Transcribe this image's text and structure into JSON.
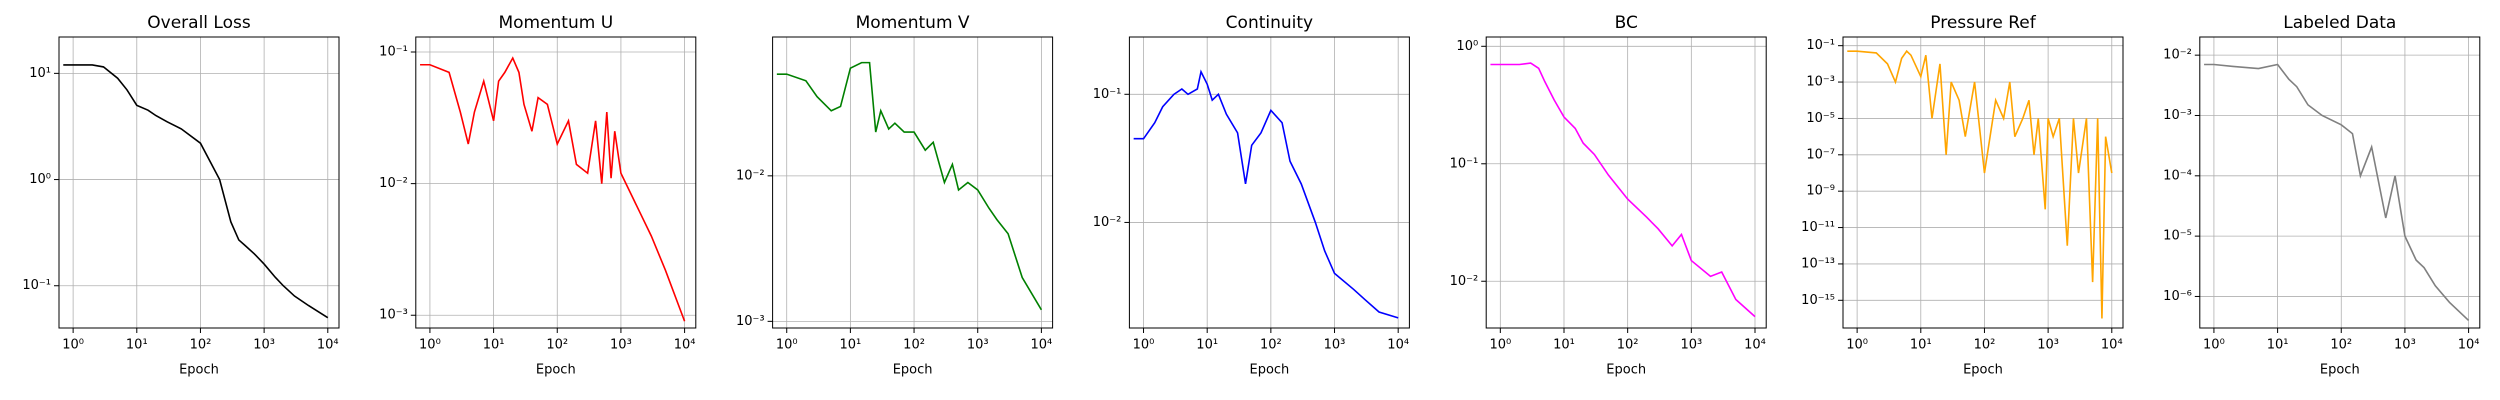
{
  "chart_data": [
    {
      "type": "line",
      "title": "Overall Loss",
      "xlabel": "Epoch",
      "color": "#000000",
      "xlog": true,
      "ylog": true,
      "grid": true,
      "x": [
        0.7,
        1,
        2,
        3,
        5,
        7,
        10,
        15,
        20,
        30,
        50,
        100,
        200,
        300,
        400,
        500,
        700,
        1000,
        1500,
        2000,
        3000,
        5000,
        10000
      ],
      "values": [
        12,
        12,
        12,
        11.5,
        9,
        7,
        5,
        4.5,
        4,
        3.5,
        3,
        2.2,
        1,
        0.4,
        0.27,
        0.24,
        0.2,
        0.16,
        0.12,
        0.1,
        0.08,
        0.065,
        0.05
      ],
      "xlim": [
        0.6,
        15000
      ],
      "ylim": [
        0.04,
        22
      ],
      "xticks": [
        {
          "value": 1,
          "label": "10⁰"
        },
        {
          "value": 10,
          "label": "10¹"
        },
        {
          "value": 100,
          "label": "10²"
        },
        {
          "value": 1000,
          "label": "10³"
        },
        {
          "value": 10000,
          "label": "10⁴"
        }
      ],
      "yticks": [
        {
          "value": 0.1,
          "label": "10⁻¹"
        },
        {
          "value": 1,
          "label": "10⁰"
        },
        {
          "value": 10,
          "label": "10¹"
        }
      ]
    },
    {
      "type": "line",
      "title": "Momentum U",
      "xlabel": "Epoch",
      "color": "#ff0000",
      "xlog": true,
      "ylog": true,
      "grid": true,
      "x": [
        0.7,
        1,
        2,
        3,
        4,
        5,
        7,
        10,
        12,
        15,
        20,
        25,
        30,
        40,
        50,
        70,
        100,
        150,
        200,
        300,
        400,
        500,
        600,
        700,
        800,
        1000,
        1500,
        2000,
        3000,
        5000,
        10000
      ],
      "values": [
        0.08,
        0.08,
        0.07,
        0.035,
        0.02,
        0.035,
        0.06,
        0.03,
        0.06,
        0.07,
        0.09,
        0.07,
        0.04,
        0.025,
        0.045,
        0.04,
        0.02,
        0.03,
        0.014,
        0.012,
        0.03,
        0.01,
        0.035,
        0.011,
        0.025,
        0.012,
        0.008,
        0.006,
        0.004,
        0.0022,
        0.0009
      ],
      "xlim": [
        0.6,
        15000
      ],
      "ylim": [
        0.0008,
        0.13
      ],
      "xticks": [
        {
          "value": 1,
          "label": "10⁰"
        },
        {
          "value": 10,
          "label": "10¹"
        },
        {
          "value": 100,
          "label": "10²"
        },
        {
          "value": 1000,
          "label": "10³"
        },
        {
          "value": 10000,
          "label": "10⁴"
        }
      ],
      "yticks": [
        {
          "value": 0.001,
          "label": "10⁻³"
        },
        {
          "value": 0.01,
          "label": "10⁻²"
        },
        {
          "value": 0.1,
          "label": "10⁻¹"
        }
      ]
    },
    {
      "type": "line",
      "title": "Momentum V",
      "xlabel": "Epoch",
      "color": "#008000",
      "xlog": true,
      "ylog": true,
      "grid": true,
      "x": [
        0.7,
        1,
        2,
        3,
        5,
        7,
        10,
        15,
        20,
        25,
        30,
        40,
        50,
        70,
        100,
        150,
        200,
        300,
        400,
        500,
        700,
        1000,
        1500,
        2000,
        3000,
        5000,
        10000
      ],
      "values": [
        0.05,
        0.05,
        0.045,
        0.035,
        0.028,
        0.03,
        0.055,
        0.06,
        0.06,
        0.02,
        0.028,
        0.021,
        0.023,
        0.02,
        0.02,
        0.015,
        0.017,
        0.009,
        0.012,
        0.008,
        0.009,
        0.008,
        0.006,
        0.005,
        0.004,
        0.002,
        0.0012
      ],
      "xlim": [
        0.6,
        15000
      ],
      "ylim": [
        0.0009,
        0.09
      ],
      "xticks": [
        {
          "value": 1,
          "label": "10⁰"
        },
        {
          "value": 10,
          "label": "10¹"
        },
        {
          "value": 100,
          "label": "10²"
        },
        {
          "value": 1000,
          "label": "10³"
        },
        {
          "value": 10000,
          "label": "10⁴"
        }
      ],
      "yticks": [
        {
          "value": 0.001,
          "label": "10⁻³"
        },
        {
          "value": 0.01,
          "label": "10⁻²"
        }
      ]
    },
    {
      "type": "line",
      "title": "Continuity",
      "xlabel": "Epoch",
      "color": "#0000ff",
      "xlog": true,
      "ylog": true,
      "grid": true,
      "x": [
        0.7,
        1,
        1.5,
        2,
        3,
        4,
        5,
        7,
        8,
        10,
        12,
        15,
        20,
        30,
        40,
        50,
        70,
        100,
        150,
        200,
        300,
        500,
        700,
        1000,
        2000,
        3000,
        5000,
        10000
      ],
      "values": [
        0.045,
        0.045,
        0.06,
        0.08,
        0.1,
        0.11,
        0.1,
        0.11,
        0.15,
        0.12,
        0.09,
        0.1,
        0.07,
        0.05,
        0.02,
        0.04,
        0.05,
        0.075,
        0.06,
        0.03,
        0.02,
        0.01,
        0.006,
        0.004,
        0.003,
        0.0025,
        0.002,
        0.0018
      ],
      "xlim": [
        0.6,
        15000
      ],
      "ylim": [
        0.0015,
        0.28
      ],
      "xticks": [
        {
          "value": 1,
          "label": "10⁰"
        },
        {
          "value": 10,
          "label": "10¹"
        },
        {
          "value": 100,
          "label": "10²"
        },
        {
          "value": 1000,
          "label": "10³"
        },
        {
          "value": 10000,
          "label": "10⁴"
        }
      ],
      "yticks": [
        {
          "value": 0.01,
          "label": "10⁻²"
        },
        {
          "value": 0.1,
          "label": "10⁻¹"
        }
      ]
    },
    {
      "type": "line",
      "title": "BC",
      "xlabel": "Epoch",
      "color": "#ff00ff",
      "xlog": true,
      "ylog": true,
      "grid": true,
      "x": [
        0.7,
        1,
        2,
        3,
        4,
        5,
        7,
        10,
        15,
        20,
        30,
        50,
        100,
        200,
        300,
        500,
        700,
        1000,
        2000,
        3000,
        5000,
        10000
      ],
      "values": [
        0.7,
        0.7,
        0.7,
        0.72,
        0.65,
        0.5,
        0.35,
        0.25,
        0.2,
        0.15,
        0.12,
        0.08,
        0.05,
        0.035,
        0.028,
        0.02,
        0.025,
        0.015,
        0.011,
        0.012,
        0.007,
        0.005
      ],
      "xlim": [
        0.6,
        15000
      ],
      "ylim": [
        0.004,
        1.2
      ],
      "xticks": [
        {
          "value": 1,
          "label": "10⁰"
        },
        {
          "value": 10,
          "label": "10¹"
        },
        {
          "value": 100,
          "label": "10²"
        },
        {
          "value": 1000,
          "label": "10³"
        },
        {
          "value": 10000,
          "label": "10⁴"
        }
      ],
      "yticks": [
        {
          "value": 0.01,
          "label": "10⁻²"
        },
        {
          "value": 0.1,
          "label": "10⁻¹"
        },
        {
          "value": 1,
          "label": "10⁰"
        }
      ]
    },
    {
      "type": "line",
      "title": "Pressure Ref",
      "xlabel": "Epoch",
      "color": "#ffa500",
      "xlog": true,
      "ylog": true,
      "grid": true,
      "x": [
        0.7,
        1,
        2,
        3,
        4,
        5,
        6,
        7,
        10,
        12,
        15,
        20,
        25,
        30,
        40,
        50,
        70,
        100,
        150,
        200,
        250,
        300,
        400,
        500,
        600,
        700,
        900,
        1000,
        1200,
        1500,
        2000,
        2500,
        3000,
        4000,
        5000,
        6000,
        7000,
        8000,
        10000
      ],
      "values": [
        0.05,
        0.05,
        0.04,
        0.01,
        0.001,
        0.02,
        0.05,
        0.03,
        0.002,
        0.03,
        1e-05,
        0.01,
        1e-07,
        0.001,
        0.0001,
        1e-06,
        0.001,
        1e-08,
        0.0001,
        1e-05,
        0.001,
        1e-06,
        1e-05,
        0.0001,
        1e-07,
        1e-05,
        1e-10,
        1e-05,
        1e-06,
        1e-05,
        1e-12,
        1e-05,
        1e-08,
        1e-05,
        1e-14,
        1e-05,
        1e-16,
        1e-06,
        1e-08
      ],
      "xlim": [
        0.6,
        15000
      ],
      "ylim": [
        3e-17,
        0.3
      ],
      "xticks": [
        {
          "value": 1,
          "label": "10⁰"
        },
        {
          "value": 10,
          "label": "10¹"
        },
        {
          "value": 100,
          "label": "10²"
        },
        {
          "value": 1000,
          "label": "10³"
        },
        {
          "value": 10000,
          "label": "10⁴"
        }
      ],
      "yticks": [
        {
          "value": 1e-15,
          "label": "10⁻¹⁵"
        },
        {
          "value": 1e-13,
          "label": "10⁻¹³"
        },
        {
          "value": 1e-11,
          "label": "10⁻¹¹"
        },
        {
          "value": 1e-09,
          "label": "10⁻⁹"
        },
        {
          "value": 1e-07,
          "label": "10⁻⁷"
        },
        {
          "value": 1e-05,
          "label": "10⁻⁵"
        },
        {
          "value": 0.001,
          "label": "10⁻³"
        },
        {
          "value": 0.1,
          "label": "10⁻¹"
        }
      ]
    },
    {
      "type": "line",
      "title": "Labeled Data",
      "xlabel": "Epoch",
      "color": "#808080",
      "xlog": true,
      "ylog": true,
      "grid": true,
      "x": [
        0.7,
        1,
        2,
        5,
        10,
        15,
        20,
        30,
        50,
        100,
        150,
        200,
        300,
        500,
        700,
        1000,
        1500,
        2000,
        3000,
        5000,
        10000
      ],
      "values": [
        0.007,
        0.007,
        0.0065,
        0.006,
        0.007,
        0.004,
        0.003,
        0.0015,
        0.001,
        0.0007,
        0.0005,
        0.0001,
        0.0003,
        2e-05,
        0.0001,
        1e-05,
        4e-06,
        3e-06,
        1.5e-06,
        8e-07,
        4e-07
      ],
      "xlim": [
        0.6,
        15000
      ],
      "ylim": [
        3e-07,
        0.02
      ],
      "xticks": [
        {
          "value": 1,
          "label": "10⁰"
        },
        {
          "value": 10,
          "label": "10¹"
        },
        {
          "value": 100,
          "label": "10²"
        },
        {
          "value": 1000,
          "label": "10³"
        },
        {
          "value": 10000,
          "label": "10⁴"
        }
      ],
      "yticks": [
        {
          "value": 1e-06,
          "label": "10⁻⁶"
        },
        {
          "value": 1e-05,
          "label": "10⁻⁵"
        },
        {
          "value": 0.0001,
          "label": "10⁻⁴"
        },
        {
          "value": 0.001,
          "label": "10⁻³"
        },
        {
          "value": 0.01,
          "label": "10⁻²"
        }
      ]
    }
  ]
}
